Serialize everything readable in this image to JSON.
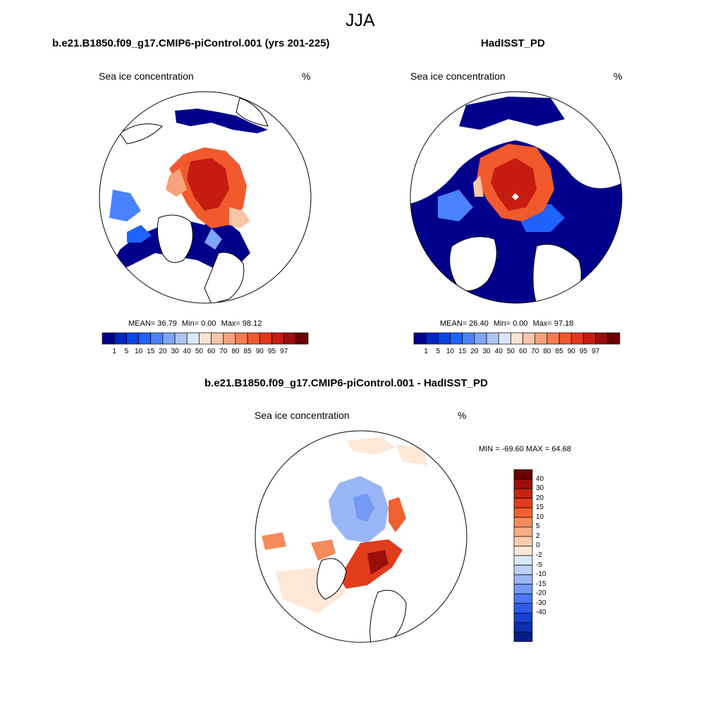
{
  "figure_title": "JJA",
  "colors": {
    "land": "#ffffff",
    "outline": "#000000",
    "ice_scale": [
      "#00008b",
      "#0026c4",
      "#0945e8",
      "#1f62ff",
      "#4a82ff",
      "#7ea6f7",
      "#abc5f5",
      "#dbe7fb",
      "#fde5d5",
      "#fbc6a8",
      "#f7a27b",
      "#f57c52",
      "#f15a2c",
      "#e0381c",
      "#c61b10",
      "#9a0f0a",
      "#6e0000"
    ],
    "diff_scale": [
      "#6e0000",
      "#9a0f0a",
      "#c2240f",
      "#e13c1b",
      "#f25f30",
      "#f58a5a",
      "#f8ad86",
      "#fbcdb0",
      "#fde8d8",
      "#dbe7fb",
      "#bcd0f8",
      "#99b6f6",
      "#7499f6",
      "#4d78f4",
      "#2e5bea",
      "#1740cf",
      "#0a2fb0",
      "#001e8a"
    ]
  },
  "panels": {
    "model": {
      "title": "b.e21.B1850.f09_g17.CMIP6-piControl.001 (yrs 201-225)",
      "left_label": "Sea ice concentration",
      "right_label": "%",
      "mean_label": "MEAN=",
      "mean": "36.79",
      "min_label": "Min=",
      "min": "0.00",
      "max_label": "Max=",
      "max": "98.12",
      "colorbar_ticks": [
        "1",
        "5",
        "10",
        "15",
        "20",
        "30",
        "40",
        "50",
        "60",
        "70",
        "80",
        "85",
        "90",
        "95",
        "97"
      ]
    },
    "obs": {
      "title": "HadISST_PD",
      "left_label": "Sea ice concentration",
      "right_label": "%",
      "mean_label": "MEAN=",
      "mean": "26.40",
      "min_label": "Min=",
      "min": "0.00",
      "max_label": "Max=",
      "max": "97.18",
      "colorbar_ticks": [
        "1",
        "5",
        "10",
        "15",
        "20",
        "30",
        "40",
        "50",
        "60",
        "70",
        "80",
        "85",
        "90",
        "95",
        "97"
      ]
    },
    "diff": {
      "title": "b.e21.B1850.f09_g17.CMIP6-piControl.001 - HadISST_PD",
      "left_label": "Sea ice concentration",
      "right_label": "%",
      "minmax_text": "MIN = -69.60 MAX =  64.68",
      "colorbar_ticks": [
        "40",
        "30",
        "20",
        "15",
        "10",
        "5",
        "2",
        "0",
        "-2",
        "-5",
        "-10",
        "-15",
        "-20",
        "-30",
        "-40"
      ]
    }
  }
}
